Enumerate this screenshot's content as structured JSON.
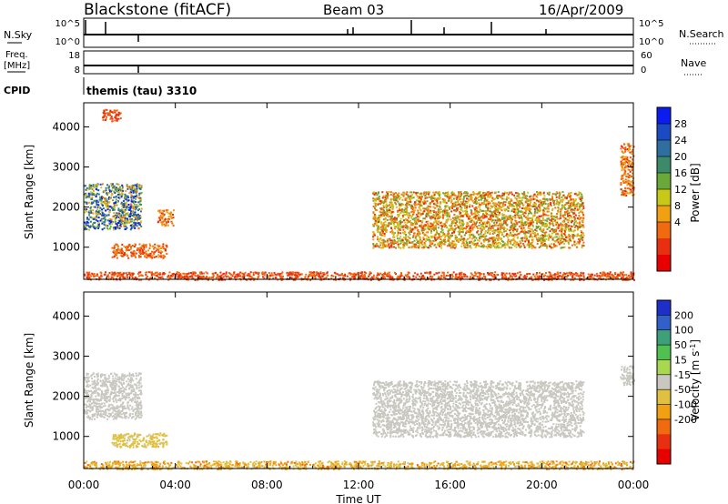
{
  "header": {
    "station": "Blackstone (fitACF)",
    "beam": "Beam 03",
    "date": "16/Apr/2009"
  },
  "status_panels": {
    "nsky_label": "N.Sky",
    "nsky_ticks": [
      "10^5",
      "10^0"
    ],
    "nsearch_label": "N.Search",
    "nsearch_ticks": [
      "10^5",
      "10^0"
    ],
    "freq_label_top": "Freq.",
    "freq_label_bottom": "[MHz]",
    "freq_ticks": [
      "18",
      "8"
    ],
    "nave_label": "Nave",
    "nave_ticks": [
      "60",
      "0"
    ],
    "cpid_label": "CPID",
    "cpid_value": "themis (tau) 3310"
  },
  "x_axis": {
    "title": "Time UT",
    "tick_labels": [
      "00:00",
      "04:00",
      "08:00",
      "12:00",
      "16:00",
      "20:00",
      "00:00"
    ]
  },
  "colorbars": {
    "power": {
      "label": "Power [dB]",
      "tick_labels": [
        "4",
        "8",
        "12",
        "16",
        "20",
        "24",
        "28"
      ],
      "colors": [
        "#0a1cf0",
        "#1a4bc2",
        "#2f6fa0",
        "#3d8a6a",
        "#6aa83a",
        "#c8c818",
        "#f0a010",
        "#f06a10",
        "#e83010",
        "#e80000"
      ]
    },
    "velocity": {
      "label_main": "Velocity [m s",
      "label_exp": "-1",
      "label_end": "]",
      "tick_labels": [
        "200",
        "100",
        "50",
        "15",
        "-15",
        "-50",
        "-100",
        "-200"
      ],
      "colors": [
        "#1e2ec8",
        "#3060c8",
        "#3ca078",
        "#50c050",
        "#a8d850",
        "#c8c8c0",
        "#e0c040",
        "#f0a010",
        "#f06a10",
        "#e83010",
        "#e80000"
      ]
    }
  },
  "chart_data": [
    {
      "type": "heatmap",
      "title": "Power",
      "xlabel": "Time UT",
      "ylabel": "Slant Range [km]",
      "xlim": [
        0,
        24
      ],
      "ylim": [
        200,
        4600
      ],
      "y_tick_labels": [
        "1000",
        "2000",
        "3000",
        "4000"
      ],
      "zlabel": "Power [dB]",
      "zlim": [
        0,
        30
      ],
      "echo_regions": [
        {
          "t_start": 0.0,
          "t_end": 2.5,
          "range_min": 1450,
          "range_max": 2600,
          "power_db": [
            8,
            30
          ]
        },
        {
          "t_start": 1.2,
          "t_end": 3.6,
          "range_min": 750,
          "range_max": 1100,
          "power_db": [
            4,
            10
          ]
        },
        {
          "t_start": 3.2,
          "t_end": 3.9,
          "range_min": 1550,
          "range_max": 1950,
          "power_db": [
            4,
            12
          ]
        },
        {
          "t_start": 0.8,
          "t_end": 1.6,
          "range_min": 4150,
          "range_max": 4450,
          "power_db": [
            4,
            8
          ]
        },
        {
          "t_start": 12.6,
          "t_end": 21.8,
          "range_min": 1000,
          "range_max": 2400,
          "power_db": [
            4,
            18
          ]
        },
        {
          "t_start": 23.4,
          "t_end": 24.0,
          "range_min": 2300,
          "range_max": 3600,
          "power_db": [
            4,
            12
          ]
        },
        {
          "t_start": 0.0,
          "t_end": 24.0,
          "range_min": 200,
          "range_max": 400,
          "power_db": [
            4,
            8
          ]
        }
      ]
    },
    {
      "type": "heatmap",
      "title": "Velocity",
      "xlabel": "Time UT",
      "ylabel": "Slant Range [km]",
      "xlim": [
        0,
        24
      ],
      "ylim": [
        200,
        4600
      ],
      "y_tick_labels": [
        "1000",
        "2000",
        "3000",
        "4000"
      ],
      "zlabel": "Velocity [m s-1]",
      "zlim": [
        -200,
        200
      ],
      "echo_regions": [
        {
          "t_start": 0.0,
          "t_end": 2.5,
          "range_min": 1450,
          "range_max": 2600,
          "velocity_ms": [
            -15,
            15
          ]
        },
        {
          "t_start": 1.2,
          "t_end": 3.6,
          "range_min": 750,
          "range_max": 1100,
          "velocity_ms": [
            -50,
            -15
          ]
        },
        {
          "t_start": 12.6,
          "t_end": 21.8,
          "range_min": 1000,
          "range_max": 2400,
          "velocity_ms": [
            -15,
            15
          ]
        },
        {
          "t_start": 23.4,
          "t_end": 24.0,
          "range_min": 2300,
          "range_max": 2800,
          "velocity_ms": [
            -15,
            15
          ]
        },
        {
          "t_start": 0.0,
          "t_end": 24.0,
          "range_min": 200,
          "range_max": 400,
          "velocity_ms": [
            -100,
            -15
          ]
        }
      ]
    }
  ]
}
